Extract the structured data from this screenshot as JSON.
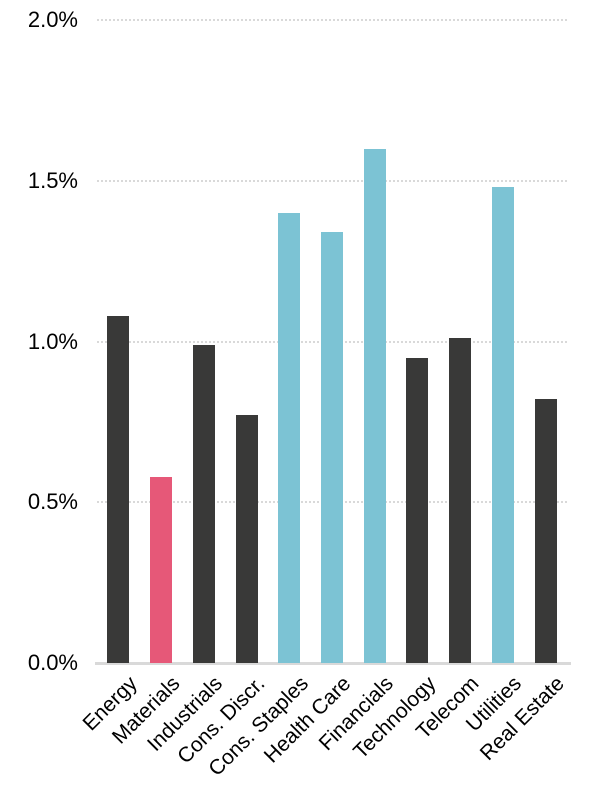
{
  "colors": {
    "background": "#FFFFFF",
    "bar_dark": "#393938",
    "bar_pink": "#E65878",
    "bar_blue": "#7CC3D4",
    "gridline": "#D9D9D9",
    "axis_line": "#D9D9D9",
    "label_text": "#000000"
  },
  "chart_data": {
    "type": "bar",
    "title": "",
    "xlabel": "",
    "ylabel": "",
    "categories": [
      "Energy",
      "Materials",
      "Industrials",
      "Cons. Discr.",
      "Cons. Staples",
      "Health Care",
      "Financials",
      "Technology",
      "Telecom",
      "Utilities",
      "Real Estate"
    ],
    "values": [
      1.08,
      0.58,
      0.99,
      0.77,
      1.4,
      1.34,
      1.6,
      0.95,
      1.01,
      1.48,
      0.82
    ],
    "value_unit": "%",
    "bar_color_keys": [
      "dark",
      "pink",
      "dark",
      "dark",
      "blue",
      "blue",
      "blue",
      "dark",
      "dark",
      "blue",
      "dark"
    ],
    "ylim": [
      0,
      2.0
    ],
    "yticks": [
      {
        "value": 0.0,
        "label": "0.0%"
      },
      {
        "value": 0.5,
        "label": "0.5%"
      },
      {
        "value": 1.0,
        "label": "1.0%"
      },
      {
        "value": 1.5,
        "label": "1.5%"
      },
      {
        "value": 2.0,
        "label": "2.0%"
      }
    ],
    "grid": true,
    "legend": false,
    "x_tick_rotation_deg": 45
  }
}
